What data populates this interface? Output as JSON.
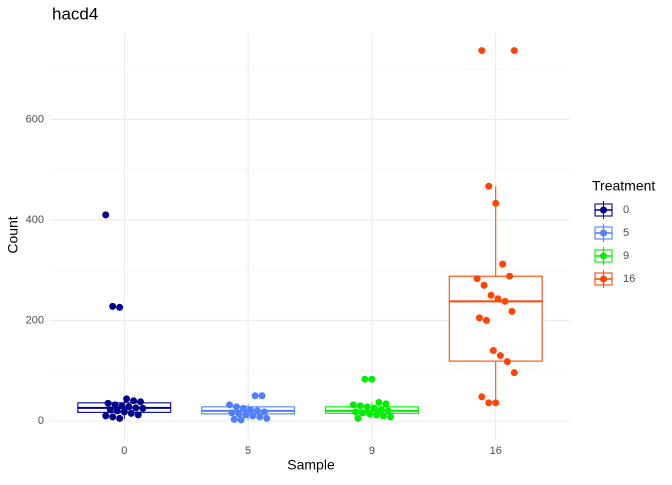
{
  "chart_data": {
    "type": "box",
    "title": "hacd4",
    "x_label": "Sample",
    "y_label": "Count",
    "categories": [
      "0",
      "5",
      "9",
      "16"
    ],
    "legend_title": "Treatment",
    "ylim": [
      -38,
      772
    ],
    "yticks": [
      0,
      200,
      400,
      600
    ],
    "grid": true,
    "series": [
      {
        "name": "0",
        "color": "#00008b",
        "whisker_low": 4,
        "q1": 17,
        "median": 26,
        "q3": 36,
        "whisker_high": 44,
        "points": [
          410,
          228,
          226,
          44,
          40,
          38,
          35,
          32,
          30,
          28,
          26,
          25,
          22,
          20,
          18,
          15,
          12,
          10,
          8,
          5
        ]
      },
      {
        "name": "5",
        "color": "#4f7fff",
        "whisker_low": 2,
        "q1": 14,
        "median": 20,
        "q3": 28,
        "whisker_high": 33,
        "points": [
          50,
          50,
          32,
          28,
          25,
          22,
          20,
          18,
          16,
          14,
          12,
          10,
          8,
          5,
          3,
          2
        ]
      },
      {
        "name": "9",
        "color": "#00ee00",
        "whisker_low": 5,
        "q1": 15,
        "median": 20,
        "q3": 28,
        "whisker_high": 37,
        "points": [
          83,
          83,
          37,
          34,
          32,
          30,
          28,
          25,
          22,
          20,
          18,
          16,
          14,
          12,
          10,
          8,
          5
        ]
      },
      {
        "name": "16",
        "color": "#ff4500",
        "whisker_low": 36,
        "q1": 119,
        "median": 238,
        "q3": 288,
        "whisker_high": 467,
        "points": [
          737,
          737,
          467,
          433,
          312,
          288,
          283,
          270,
          250,
          243,
          238,
          218,
          205,
          200,
          140,
          130,
          118,
          96,
          48,
          36,
          36
        ]
      }
    ]
  }
}
